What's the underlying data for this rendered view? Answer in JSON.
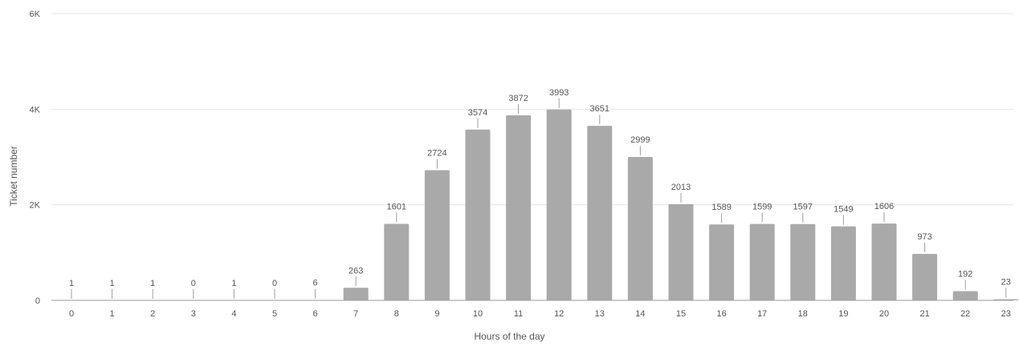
{
  "chart_data": {
    "type": "bar",
    "xlabel": "Hours of the day",
    "ylabel": "Ticket number",
    "ylim": [
      0,
      6000
    ],
    "yticks": [
      {
        "value": 0,
        "label": "0"
      },
      {
        "value": 2000,
        "label": "2K"
      },
      {
        "value": 4000,
        "label": "4K"
      },
      {
        "value": 6000,
        "label": "6K"
      }
    ],
    "categories": [
      "0",
      "1",
      "2",
      "3",
      "4",
      "5",
      "6",
      "7",
      "8",
      "9",
      "10",
      "11",
      "12",
      "13",
      "14",
      "15",
      "16",
      "17",
      "18",
      "19",
      "20",
      "21",
      "22",
      "23"
    ],
    "values": [
      1,
      1,
      1,
      0,
      1,
      0,
      6,
      263,
      1601,
      2724,
      3574,
      3872,
      3993,
      3651,
      2999,
      2013,
      1589,
      1599,
      1597,
      1549,
      1606,
      973,
      192,
      23
    ],
    "data_labels": [
      "1",
      "1",
      "1",
      "0",
      "1",
      "0",
      "6",
      "263",
      "1601",
      "2724",
      "3574",
      "3872",
      "3993",
      "3651",
      "2999",
      "2013",
      "1589",
      "1599",
      "1597",
      "1549",
      "1606",
      "973",
      "192",
      "23"
    ],
    "grid": true,
    "legend": "none",
    "colors": {
      "bar": "#a9a9a9",
      "grid": "#e6e6e6",
      "axis": "#9a9a9a",
      "text": "#555555"
    }
  }
}
